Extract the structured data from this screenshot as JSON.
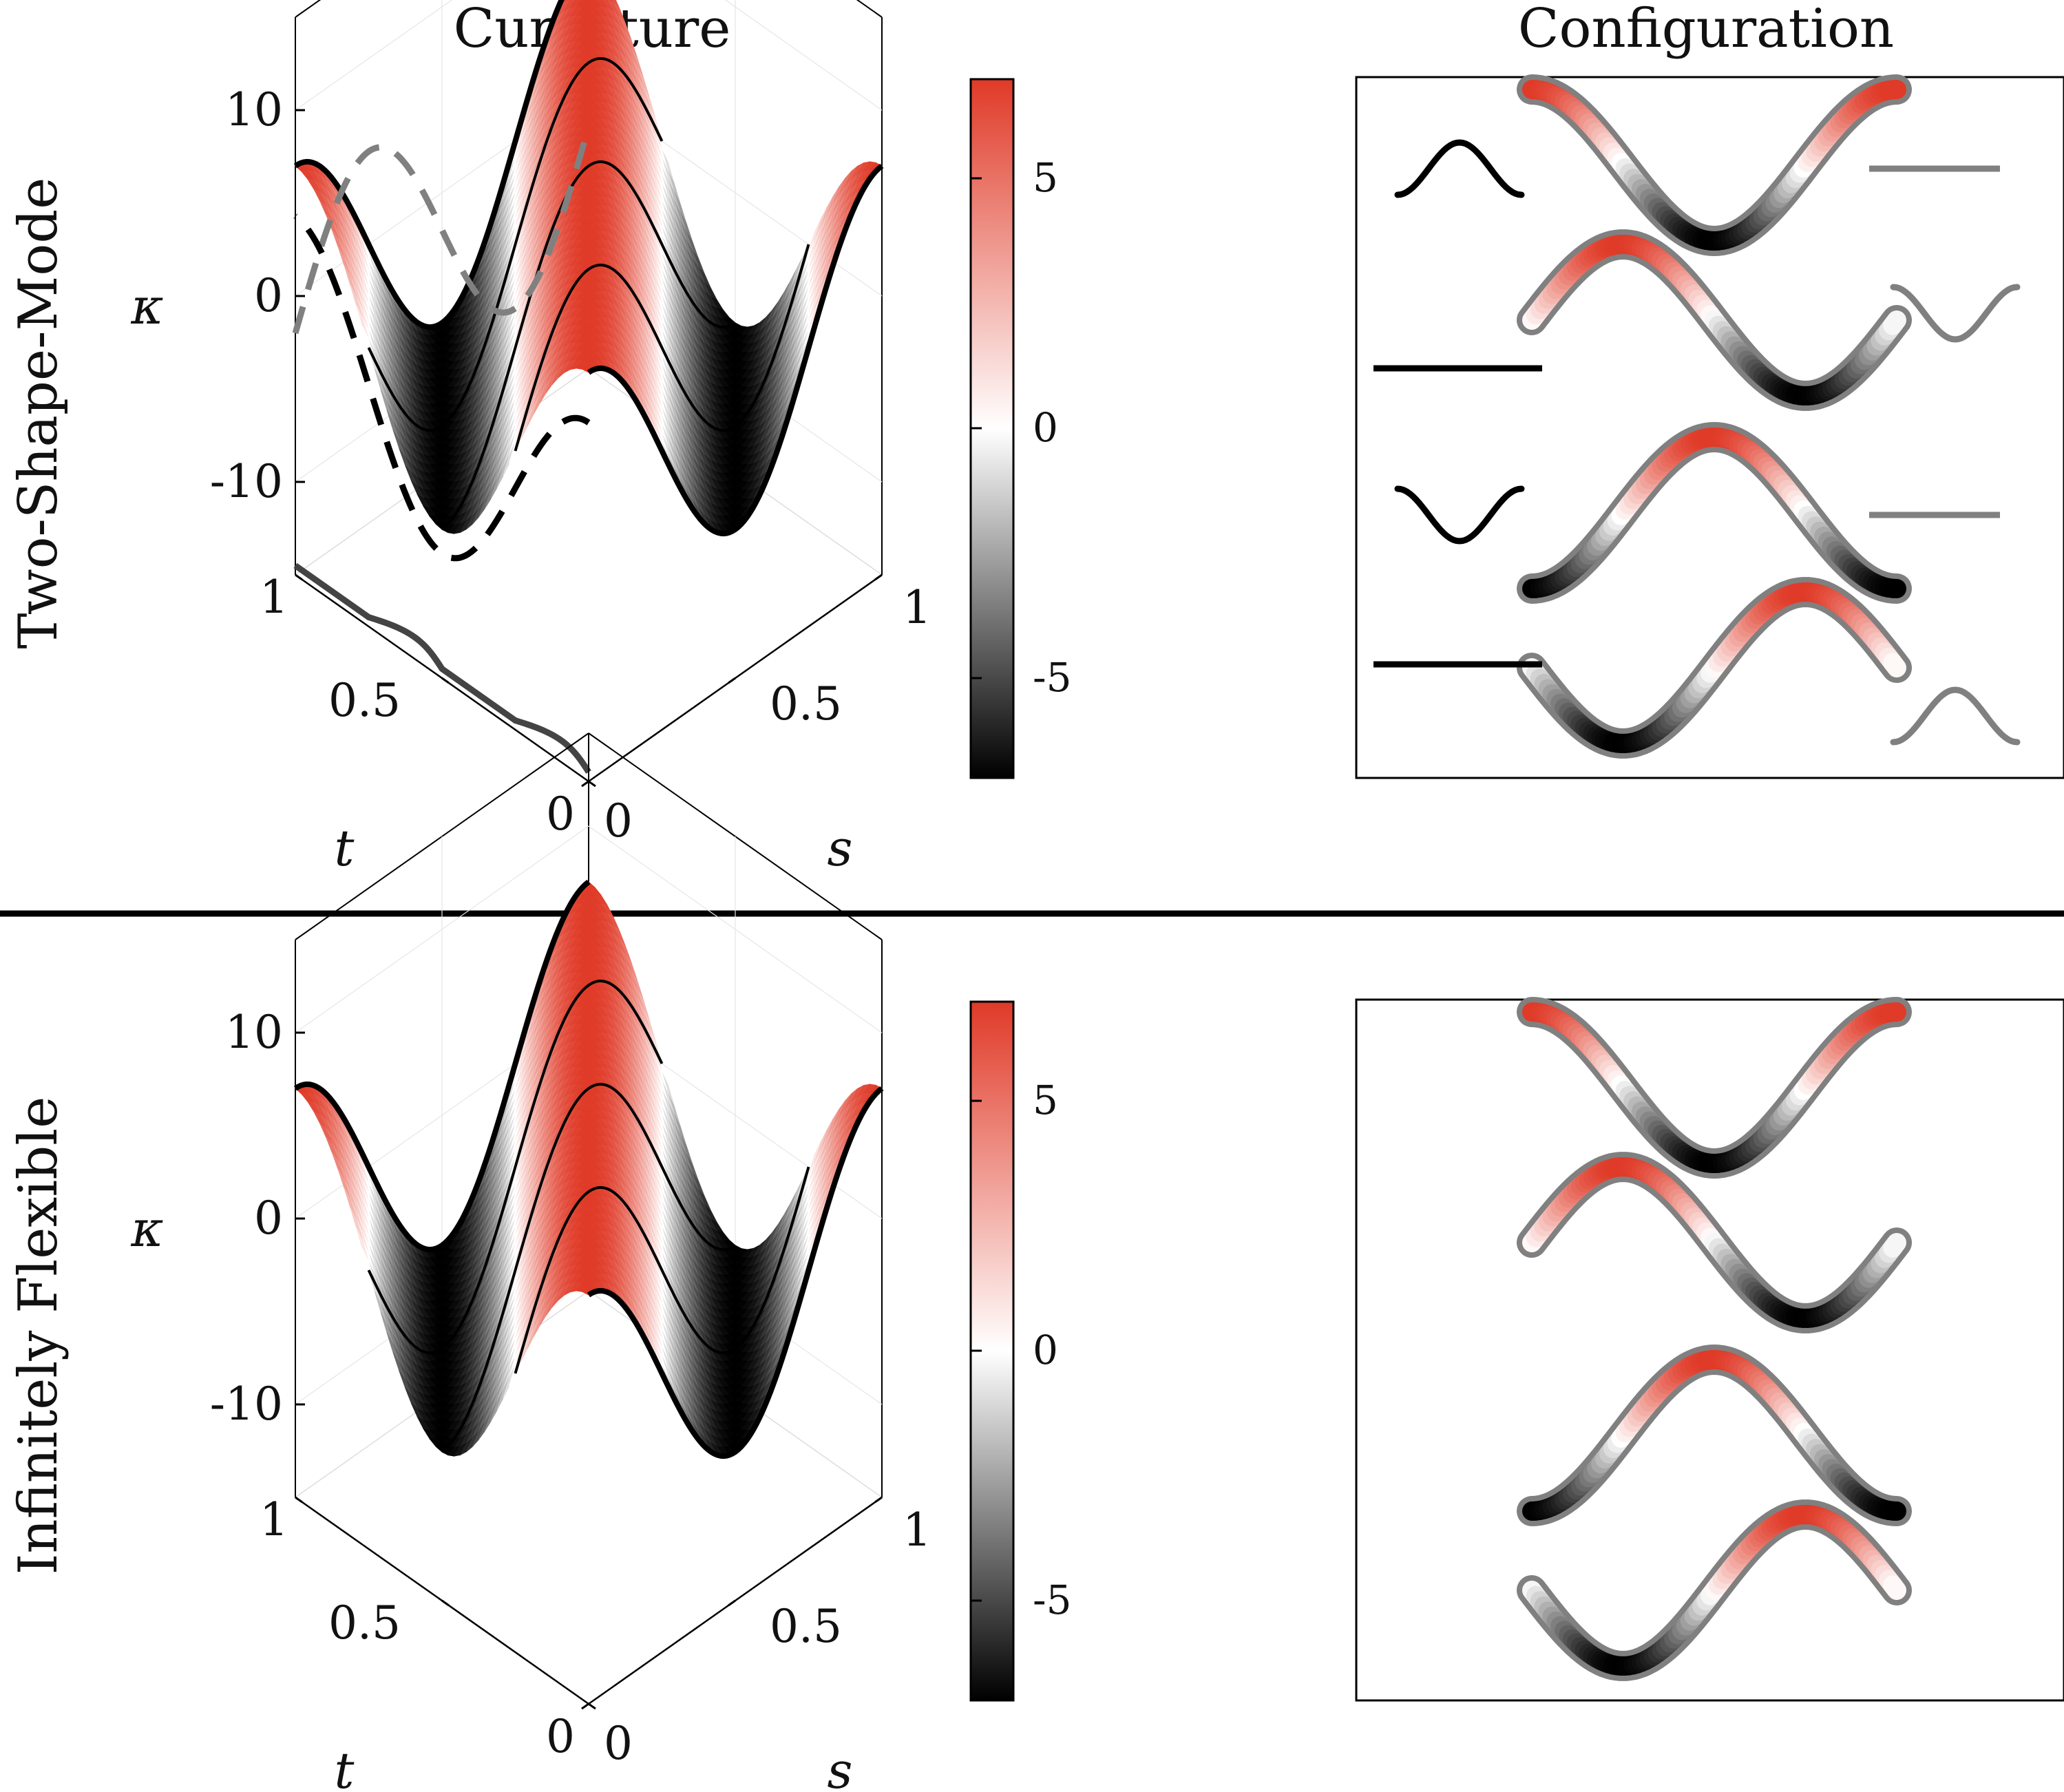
{
  "headers": {
    "curvature": "Curvature",
    "configuration": "Configuration"
  },
  "rows": [
    {
      "label": "Two-Shape-Mode"
    },
    {
      "label": "Infinitely Flexible"
    }
  ],
  "colors": {
    "negative": "#000000",
    "zero": "#ffffff",
    "positive": "#e03a28",
    "outline": "#808080",
    "frame": "#000000"
  },
  "chart_data": [
    {
      "type": "surface",
      "title": "Two-Shape-Mode curvature",
      "function": "kappa(s,t) = 7*cos(2*pi*s - 2*pi*t)",
      "xlabel": "s",
      "ylabel": "t",
      "zlabel": "κ",
      "s_ticks": [
        "0",
        "0.5",
        "1"
      ],
      "t_ticks": [
        "0",
        "0.5",
        "1"
      ],
      "kappa_ticks": [
        "10",
        "0",
        "-10"
      ],
      "kappa_range": [
        -15,
        15
      ],
      "amplitude": 7,
      "highlighted_t": [
        0,
        0.25,
        0.5,
        0.75,
        1
      ],
      "colorbar": {
        "ticks": [
          "5",
          "0",
          "-5"
        ],
        "range": [
          -7,
          7
        ]
      },
      "mode_projections": [
        {
          "name": "shape mode 1 (black, dashed)",
          "color": "#000000"
        },
        {
          "name": "shape mode 2 (gray, dashed)",
          "color": "#808080"
        },
        {
          "name": "gait path on floor",
          "color": "#222222"
        }
      ]
    },
    {
      "type": "surface",
      "title": "Infinitely Flexible curvature",
      "function": "kappa(s,t) = 7*cos(2*pi*s - 2*pi*t)",
      "xlabel": "s",
      "ylabel": "t",
      "zlabel": "κ",
      "s_ticks": [
        "0",
        "0.5",
        "1"
      ],
      "t_ticks": [
        "0",
        "0.5",
        "1"
      ],
      "kappa_ticks": [
        "10",
        "0",
        "-10"
      ],
      "kappa_range": [
        -15,
        15
      ],
      "amplitude": 7,
      "highlighted_t": [
        0,
        0.25,
        0.5,
        0.75,
        1
      ],
      "colorbar": {
        "ticks": [
          "5",
          "0",
          "-5"
        ],
        "range": [
          -7,
          7
        ]
      }
    },
    {
      "type": "line",
      "title": "Two-Shape-Mode configuration",
      "snapshots_t": [
        0,
        0.25,
        0.5,
        0.75
      ],
      "mode_weights": [
        {
          "mode1": 1,
          "mode2": 0
        },
        {
          "mode1": 0,
          "mode2": 1
        },
        {
          "mode1": -1,
          "mode2": 0
        },
        {
          "mode1": 0,
          "mode2": -1
        }
      ]
    },
    {
      "type": "line",
      "title": "Infinitely Flexible configuration",
      "snapshots_t": [
        0,
        0.25,
        0.5,
        0.75
      ]
    }
  ]
}
